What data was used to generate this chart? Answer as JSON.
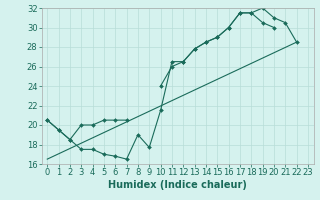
{
  "xlabel": "Humidex (Indice chaleur)",
  "bg_color": "#d5f2ee",
  "grid_color": "#b8ddd8",
  "line_color": "#1a6b5a",
  "xlim": [
    -0.5,
    23.5
  ],
  "ylim": [
    16,
    32
  ],
  "xticks": [
    0,
    1,
    2,
    3,
    4,
    5,
    6,
    7,
    8,
    9,
    10,
    11,
    12,
    13,
    14,
    15,
    16,
    17,
    18,
    19,
    20,
    21,
    22,
    23
  ],
  "yticks": [
    16,
    18,
    20,
    22,
    24,
    26,
    28,
    30,
    32
  ],
  "line1_x": [
    0,
    1,
    2,
    3,
    4,
    5,
    6,
    7,
    8,
    9,
    10,
    11,
    12,
    13,
    14,
    15,
    16,
    17,
    18,
    19,
    20
  ],
  "line1_y": [
    20.5,
    19.5,
    18.5,
    17.5,
    17.5,
    17.0,
    16.8,
    16.5,
    19.0,
    17.7,
    21.5,
    26.5,
    26.5,
    27.8,
    28.5,
    29.0,
    30.0,
    31.5,
    31.5,
    30.5,
    30.0
  ],
  "line2_x": [
    0,
    1,
    2,
    3,
    4,
    5,
    6,
    7,
    10,
    11,
    12,
    13,
    14,
    15,
    16,
    17,
    18,
    19,
    20,
    21,
    22
  ],
  "line2_y": [
    20.5,
    19.5,
    18.5,
    20.0,
    20.0,
    20.5,
    20.5,
    20.5,
    24.0,
    26.0,
    26.5,
    27.8,
    28.5,
    29.0,
    30.0,
    31.5,
    31.5,
    32.0,
    31.0,
    30.5,
    28.5
  ],
  "line3_x": [
    0,
    22
  ],
  "line3_y": [
    16.5,
    28.5
  ],
  "font_size": 6.5
}
